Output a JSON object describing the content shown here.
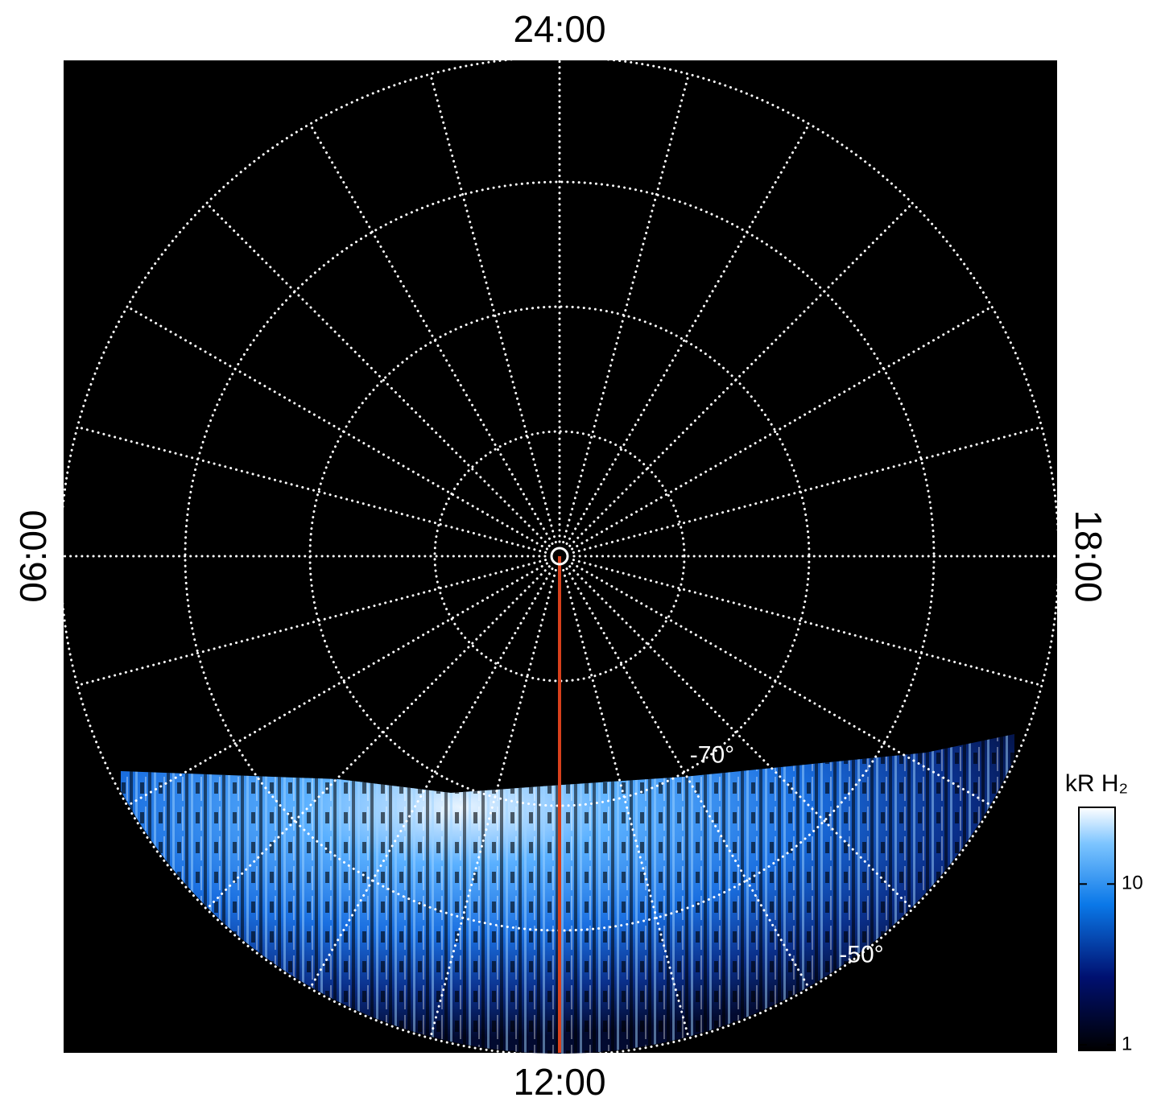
{
  "chart_data": {
    "type": "polar",
    "hour_lines": [
      0,
      1,
      2,
      3,
      4,
      5,
      6,
      7,
      8,
      9,
      10,
      11,
      12,
      13,
      14,
      15,
      16,
      17,
      18,
      19,
      20,
      21,
      22,
      23
    ],
    "hour_labels": [
      {
        "value": 0,
        "label": "24:00"
      },
      {
        "value": 6,
        "label": "06:00"
      },
      {
        "value": 12,
        "label": "12:00"
      },
      {
        "value": 18,
        "label": "18:00"
      }
    ],
    "lat_circles": [
      -80,
      -70,
      -60,
      -50
    ],
    "lat_labels": [
      {
        "value": -70,
        "label": "-70°"
      },
      {
        "value": -50,
        "label": "-50°"
      }
    ],
    "colorbar": {
      "title": "kR H₂",
      "lim": [
        1,
        30
      ],
      "ticks": [
        1,
        10
      ],
      "log": true
    }
  }
}
